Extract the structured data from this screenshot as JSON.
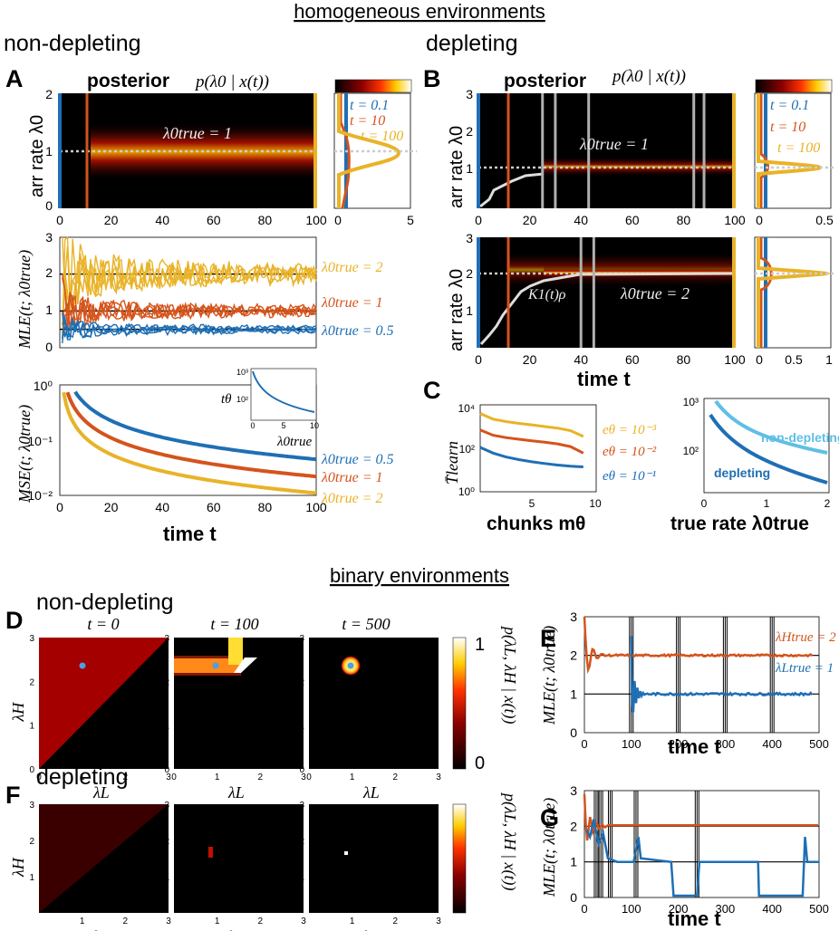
{
  "headings": {
    "homogeneous": "homogeneous environments",
    "binary": "binary environments",
    "non_depleting": "non-depleting",
    "depleting": "depleting",
    "non_depleting_binary": "non-depleting",
    "depleting_binary": "depleting"
  },
  "letters": {
    "A": "A",
    "B": "B",
    "C": "C",
    "D": "D",
    "E": "E",
    "F": "F",
    "G": "G"
  },
  "labels": {
    "posterior": "posterior",
    "p_formula": "p(λ0 | x(t))",
    "arr_rate": "arr rate λ0",
    "true_eq_1": "λ0true = 1",
    "true_eq_2": "λ0true = 2",
    "k1rho": "K1(t)ρ",
    "mle": "MLE(t; λ0true)",
    "mse": "MSE(t; λ0true)",
    "time_t": "time t",
    "t_theta": "tθ",
    "lambda0_true": "λ0true",
    "t_learn": "T̄learn",
    "chunks": "chunks mθ",
    "true_rate": "true rate λ0true",
    "lambda_H": "λH",
    "lambda_L": "λL",
    "posterior_2d": "p(λL, λH | x(t))",
    "t0": "t = 0",
    "t100": "t = 100",
    "t500": "t = 500",
    "cb_top": "1",
    "cb_bot": "0"
  },
  "colors": {
    "blue": "#1f6fb4",
    "orange": "#d4541c",
    "yellow": "#e9b328",
    "lightblue": "#5fbfe6",
    "gray": "#b0b0b0"
  },
  "chart_data": [
    {
      "id": "A-posterior",
      "type": "heatmap",
      "title": "posterior p(λ0 | x(t))",
      "xlim": [
        0,
        100
      ],
      "ylim": [
        0,
        2
      ],
      "xticks": [
        "0",
        "20",
        "40",
        "60",
        "80",
        "100"
      ],
      "yticks": [
        "0",
        "1",
        "2"
      ],
      "ylabel": "arr rate λ0",
      "annotation": "λ0true = 1",
      "true_value": 1,
      "time_markers": [
        {
          "t": 0,
          "color": "blue"
        },
        {
          "t": 10,
          "color": "orange"
        },
        {
          "t": 100,
          "color": "yellow"
        }
      ]
    },
    {
      "id": "A-side",
      "type": "line",
      "xlim": [
        0,
        5
      ],
      "xticks": [
        "0",
        "5"
      ],
      "legend": [
        "t = 0.1",
        "t = 10",
        "t = 100"
      ]
    },
    {
      "id": "A-mle",
      "type": "line",
      "xlim": [
        0,
        100
      ],
      "ylim": [
        0,
        3
      ],
      "yticks": [
        "0",
        "1",
        "2",
        "3"
      ],
      "ylabel": "MLE(t; λ0true)",
      "series": [
        {
          "name": "λ0true = 2",
          "true": 2,
          "color": "yellow"
        },
        {
          "name": "λ0true = 1",
          "true": 1,
          "color": "orange"
        },
        {
          "name": "λ0true = 0.5",
          "true": 0.5,
          "color": "blue"
        }
      ]
    },
    {
      "id": "A-mse",
      "type": "line",
      "xlim": [
        0,
        100
      ],
      "ylim": [
        0.01,
        1
      ],
      "yscale": "log",
      "xticks": [
        "0",
        "20",
        "40",
        "60",
        "80",
        "100"
      ],
      "yticks": [
        "10⁰",
        "10⁻¹",
        "10⁻²"
      ],
      "xlabel": "time t",
      "ylabel": "MSE(t; λ0true)",
      "series": [
        {
          "name": "λ0true = 0.5",
          "lambda": 0.5,
          "color": "blue",
          "end_value": 0.045
        },
        {
          "name": "λ0true = 1",
          "lambda": 1,
          "color": "orange",
          "end_value": 0.022
        },
        {
          "name": "λ0true = 2",
          "lambda": 2,
          "color": "yellow",
          "end_value": 0.011
        }
      ]
    },
    {
      "id": "A-inset",
      "type": "line",
      "xlim": [
        0,
        10
      ],
      "xticks": [
        "0",
        "5",
        "10"
      ],
      "yticks": [
        "10³",
        "10²"
      ],
      "xlabel": "λ0true",
      "ylabel": "tθ"
    },
    {
      "id": "B-posterior-1",
      "type": "heatmap",
      "title": "posterior p(λ0 | x(t))",
      "xlim": [
        0,
        100
      ],
      "ylim": [
        0,
        3
      ],
      "xticks": [
        "0",
        "20",
        "40",
        "60",
        "80",
        "100"
      ],
      "yticks": [
        "1",
        "2",
        "3"
      ],
      "ylabel": "arr rate λ0",
      "annotation": "λ0true = 1",
      "true_value": 1,
      "depletion_times": [
        25,
        30,
        43,
        84,
        88
      ]
    },
    {
      "id": "B-side-1",
      "type": "line",
      "xlim": [
        0,
        0.5
      ],
      "xticks": [
        "0",
        "0.5"
      ],
      "legend": [
        "t = 0.1",
        "t = 10",
        "t = 100"
      ]
    },
    {
      "id": "B-posterior-2",
      "type": "heatmap",
      "xlim": [
        0,
        100
      ],
      "ylim": [
        0,
        3
      ],
      "xticks": [
        "0",
        "20",
        "40",
        "60",
        "80",
        "100"
      ],
      "yticks": [
        "1",
        "2",
        "3"
      ],
      "xlabel": "time t",
      "ylabel": "arr rate λ0",
      "annotation": "λ0true = 2",
      "true_value": 2,
      "depletion_times": [
        40,
        45
      ],
      "curve_label": "K1(t)ρ"
    },
    {
      "id": "B-side-2",
      "type": "line",
      "xlim": [
        0,
        1
      ],
      "xticks": [
        "0",
        "0.5",
        "1"
      ]
    },
    {
      "id": "C-left",
      "type": "line",
      "xlim": [
        1,
        10
      ],
      "ylim": [
        1,
        10000
      ],
      "yscale": "log",
      "xticks": [
        "5",
        "10"
      ],
      "yticks": [
        "10⁴",
        "10²",
        "10⁰"
      ],
      "xlabel": "chunks mθ",
      "ylabel": "T̄learn",
      "series": [
        {
          "name": "eθ = 10⁻³",
          "color": "yellow",
          "values": [
            4000,
            2200,
            1700,
            1400,
            1200,
            1000,
            850,
            650,
            350
          ]
        },
        {
          "name": "eθ = 10⁻²",
          "color": "orange",
          "values": [
            700,
            400,
            310,
            260,
            220,
            190,
            160,
            120,
            60
          ]
        },
        {
          "name": "eθ = 10⁻¹",
          "color": "blue",
          "values": [
            110,
            60,
            40,
            30,
            24,
            20,
            17,
            15,
            14
          ]
        }
      ]
    },
    {
      "id": "C-right",
      "type": "line",
      "xlim": [
        0,
        2
      ],
      "ylim": [
        10,
        1000
      ],
      "yscale": "log",
      "xticks": [
        "0",
        "1",
        "2"
      ],
      "yticks": [
        "10³",
        "10²"
      ],
      "xlabel": "true rate λ0true",
      "series": [
        {
          "name": "non-depleting",
          "color": "lightblue"
        },
        {
          "name": "depleting",
          "color": "blue"
        }
      ]
    },
    {
      "id": "D-heatmaps",
      "type": "heatmap",
      "panels": [
        "t = 0",
        "t = 100",
        "t = 500"
      ],
      "xlim": [
        0,
        3
      ],
      "ylim": [
        0,
        3
      ],
      "xticks": [
        "0",
        "1",
        "2",
        "3"
      ],
      "yticks": [
        "1",
        "2",
        "3"
      ],
      "xlabel": "λL",
      "ylabel": "λH",
      "true_point": [
        1,
        2
      ],
      "colorbar": [
        "0",
        "1"
      ],
      "colorbar_label": "p(λL, λH | x(t))"
    },
    {
      "id": "E-mle",
      "type": "line",
      "xlim": [
        0,
        500
      ],
      "ylim": [
        0,
        3
      ],
      "xticks": [
        "0",
        "100",
        "200",
        "300",
        "400",
        "500"
      ],
      "yticks": [
        "0",
        "1",
        "2",
        "3"
      ],
      "xlabel": "time t",
      "ylabel": "MLE(t; λ0true)",
      "switch_times": [
        100,
        200,
        300,
        400
      ],
      "series": [
        {
          "name": "λHtrue = 2",
          "true": 2,
          "color": "orange"
        },
        {
          "name": "λLtrue = 1",
          "true": 1,
          "color": "blue"
        }
      ]
    },
    {
      "id": "F-heatmaps",
      "type": "heatmap",
      "xlim": [
        0,
        3
      ],
      "ylim": [
        0,
        3
      ],
      "xticks": [
        "1",
        "2",
        "3"
      ],
      "yticks": [
        "1",
        "2",
        "3"
      ],
      "xlabel": "λL",
      "ylabel": "λH",
      "colorbar_label": "p(λL, λH | x(t))"
    },
    {
      "id": "G-mle",
      "type": "line",
      "xlim": [
        0,
        500
      ],
      "ylim": [
        0,
        3
      ],
      "xticks": [
        "0",
        "100",
        "200",
        "300",
        "400",
        "500"
      ],
      "yticks": [
        "0",
        "1",
        "2",
        "3"
      ],
      "xlabel": "time t",
      "ylabel": "MLE(t; λ0true)",
      "switch_times": [
        25,
        35,
        55,
        110,
        240
      ]
    }
  ]
}
